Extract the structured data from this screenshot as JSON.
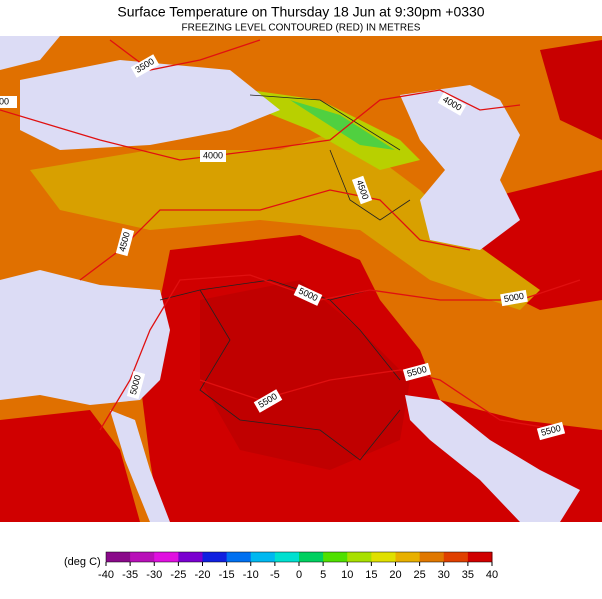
{
  "header": {
    "title": "Surface Temperature on Thursday 18 Jun at 9:30pm +0330",
    "subtitle": "FREEZING LEVEL CONTOURED (RED) IN METRES"
  },
  "map": {
    "contour_labels": [
      "3500",
      "00",
      "4000",
      "4000",
      "4500",
      "4500",
      "5000",
      "5000",
      "5000",
      "5500",
      "5500",
      "5500"
    ]
  },
  "legend": {
    "unit": "(deg C)",
    "ticks": [
      -40,
      -35,
      -30,
      -25,
      -20,
      -15,
      -10,
      -5,
      0,
      5,
      10,
      15,
      20,
      25,
      30,
      35,
      40
    ],
    "colors": [
      "#5a0060",
      "#8a0a8a",
      "#b810b8",
      "#e010e0",
      "#7a00d0",
      "#1020e0",
      "#0070f0",
      "#00b8f0",
      "#00e0d0",
      "#00d060",
      "#50e000",
      "#a8e000",
      "#e0e000",
      "#e8b000",
      "#e07800",
      "#e04000",
      "#d00000"
    ]
  }
}
